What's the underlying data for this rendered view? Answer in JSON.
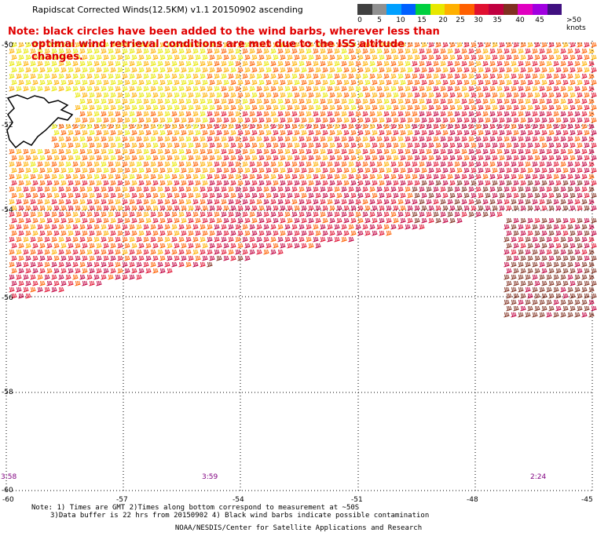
{
  "title": "Rapidscat Corrected Winds(12.5KM) v1.1 20150902 ascending",
  "note": {
    "line1": "Note: black circles have been added to the wind barbs, wherever less than",
    "line2": "optimal wind retrieval conditions are met due to the ISS altitude changes."
  },
  "colorbar": {
    "colors": [
      "#404040",
      "#909090",
      "#00a0ff",
      "#0060ff",
      "#00d040",
      "#e8e800",
      "#ffb000",
      "#ff6000",
      "#e01030",
      "#c00040",
      "#803020",
      "#e000c0",
      "#a000e0",
      "#401080"
    ],
    "labels": [
      "0",
      "5",
      "10",
      "15",
      "20",
      "25",
      "30",
      "35",
      "40",
      "45",
      ">50 knots"
    ]
  },
  "axes": {
    "lat_labels": [
      "-50",
      "-52",
      "-54",
      "-56",
      "-58",
      "-60"
    ],
    "lon_labels": [
      "-60",
      "-57",
      "-54",
      "-51",
      "-48",
      "-45"
    ]
  },
  "time_labels": [
    "3:58",
    "3:59",
    "2:24"
  ],
  "footnote": {
    "line1": "Note: 1) Times are GMT 2)Times along bottom correspond to measurement at ~50S",
    "line2": "3)Data buffer is 22 hrs from 20150902 4) Black wind barbs indicate possible contamination"
  },
  "credit": "NOAA/NESDIS/Center for Satellite Applications and Research"
}
